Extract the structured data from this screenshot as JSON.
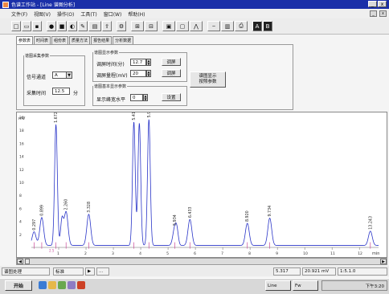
{
  "window": {
    "title": "色谱工作站 - [Line 谱图分析]",
    "minimize": "_",
    "close": "x"
  },
  "menu": [
    "文件(F)",
    "视图(V)",
    "操作(O)",
    "工具(T)",
    "窗口(W)",
    "帮助(H)"
  ],
  "toolbar": {
    "icons": [
      "new-icon",
      "open-icon",
      "save-icon",
      "record-icon",
      "stop-icon",
      "light-icon",
      "edit-icon",
      "spectrum-icon",
      "export-icon",
      "zoom-in-icon",
      "zoom-out-icon",
      "fit-icon",
      "fit-all-icon",
      "peak-icon",
      "baseline-icon",
      "report-icon",
      "print-icon",
      "black-a-icon",
      "black-b-icon"
    ]
  },
  "tabs": [
    "参数表",
    "时间表",
    "组份表",
    "质量方法",
    "报告结果",
    "分析数据"
  ],
  "params": {
    "sampling_group": "谱图采集参数",
    "channel_label": "信号通道",
    "channel_value": "A",
    "rate_label": "采集时间",
    "rate_value": "12.5",
    "rate_unit": "分",
    "display_group": "谱图显示参数",
    "time_label": "调屏时间(分)",
    "time_value": "12.7",
    "time_button": "调屏",
    "range_label": "调屏量程(mV)",
    "range_value": "20",
    "range_button": "调屏",
    "baseline_group": "谱图基本显示参数",
    "baseline_label": "显示峰宽水平",
    "baseline_value": "0",
    "baseline_button": "设置",
    "tile_button_l1": "谱图显示",
    "tile_button_l2": "按照参数"
  },
  "chart_data": {
    "type": "line",
    "ylabel": "mV",
    "xlabel": "min",
    "xlim": [
      0,
      12.7
    ],
    "ylim": [
      0,
      20
    ],
    "yticks": [
      2,
      4,
      6,
      8,
      10,
      12,
      14,
      16,
      18,
      20
    ],
    "xticks": [
      1,
      2,
      3,
      4,
      5,
      6,
      7,
      8,
      9,
      10,
      11,
      12
    ],
    "peaks": [
      {
        "rt": 0.1,
        "label": "0.297",
        "height": 2.1
      },
      {
        "rt": 0.38,
        "label": "0.899",
        "height": 4.3
      },
      {
        "rt": 0.9,
        "label": "1.672",
        "height": 18.6
      },
      {
        "rt": 1.27,
        "label": "2.260",
        "height": 5.2
      },
      {
        "rt": 2.1,
        "label": "3.328",
        "height": 4.8
      },
      {
        "rt": 3.75,
        "label": "5.413",
        "height": 19.0
      },
      {
        "rt": 4.3,
        "label": "5.986",
        "height": 19.4
      },
      {
        "rt": 5.25,
        "label": "5.934",
        "height": 2.8
      },
      {
        "rt": 5.8,
        "label": "6.433",
        "height": 4.0
      },
      {
        "rt": 7.9,
        "label": "8.920",
        "height": 3.4
      },
      {
        "rt": 8.72,
        "label": "9.734",
        "height": 4.2
      },
      {
        "rt": 12.4,
        "label": "13.243",
        "height": 2.2
      }
    ],
    "minor_peaks": [
      {
        "rt": 1.12,
        "height": 3.9
      },
      {
        "rt": 3.95,
        "height": 18.8
      },
      {
        "rt": 5.33,
        "height": 1.5
      }
    ],
    "trace_color": "#2a35c8",
    "marker_color": "#c84a9a",
    "baseline_label": "2.5"
  },
  "scroll": {
    "left": "◀",
    "right": "▶"
  },
  "statusbar": {
    "left": "谱图处理",
    "pane_tab": "标准",
    "pane_nav_1": "▶",
    "pane_nav_2": "...",
    "time": "5.317",
    "signal": "20.921 mV",
    "coords": "1:5.1.0"
  },
  "taskbar": {
    "start": "开始",
    "item1": "Line",
    "item2": "Fw",
    "clock": "下午3:20"
  }
}
